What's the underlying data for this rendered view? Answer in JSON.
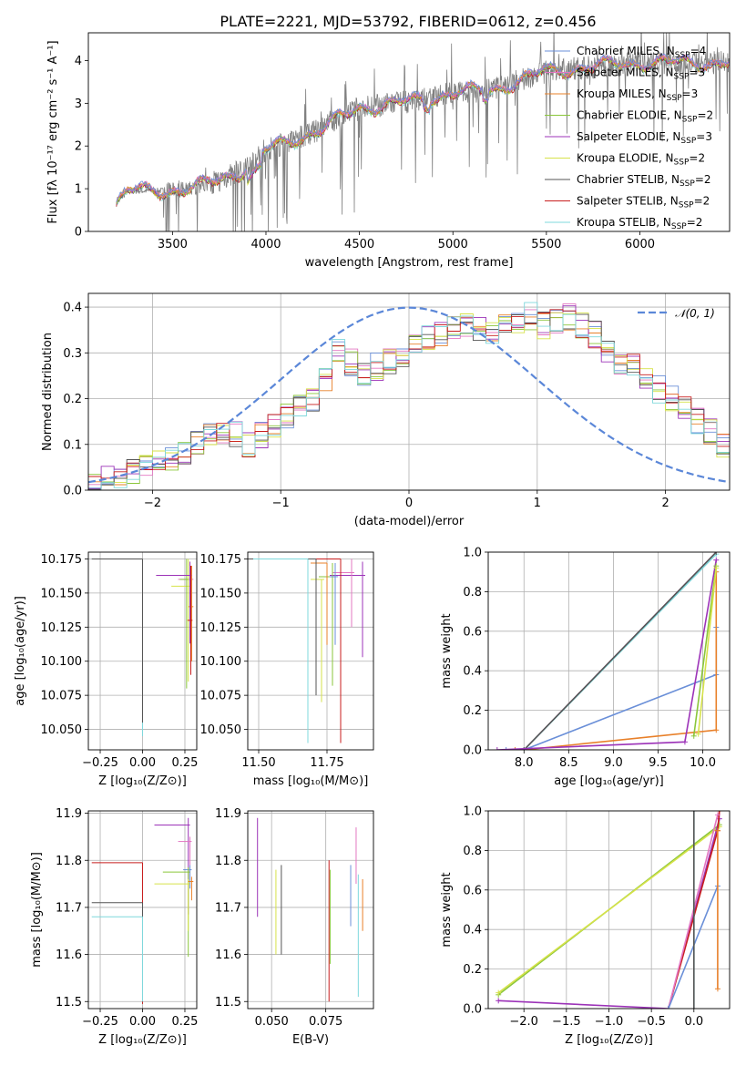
{
  "figure": {
    "title": "PLATE=2221, MJD=53792, FIBERID=0612, z=0.456"
  },
  "colors": {
    "chabrier_miles": "#6a8fd8",
    "salpeter_miles": "#e377c2",
    "kroupa_miles": "#e8802a",
    "chabrier_elodie": "#8ac63a",
    "salpeter_elodie": "#9c33b8",
    "kroupa_elodie": "#d6e24a",
    "chabrier_stelib": "#555555",
    "salpeter_stelib": "#c81e1e",
    "kroupa_stelib": "#7fd8dc",
    "data": "#808080"
  },
  "chart_data": [
    {
      "id": "spectrum",
      "type": "line",
      "xlabel": "wavelength [Angstrom, rest frame]",
      "ylabel": "Flux [fλ 10⁻¹⁷ erg cm⁻² s⁻¹ A⁻¹]",
      "xlim": [
        3050,
        6480
      ],
      "ylim": [
        0,
        4.65
      ],
      "xticks": [
        3500,
        4000,
        4500,
        5000,
        5500,
        6000
      ],
      "yticks": [
        0,
        1,
        2,
        3,
        4
      ],
      "x_range": [
        3200,
        6480
      ],
      "continuum_nodes": [
        [
          3200,
          0.65
        ],
        [
          3260,
          0.95
        ],
        [
          3450,
          0.95
        ],
        [
          3600,
          1.0
        ],
        [
          3750,
          1.2
        ],
        [
          3900,
          1.5
        ],
        [
          4000,
          1.9
        ],
        [
          4300,
          2.4
        ],
        [
          4500,
          2.9
        ],
        [
          4800,
          3.05
        ],
        [
          5000,
          3.25
        ],
        [
          5200,
          3.3
        ],
        [
          5500,
          3.75
        ],
        [
          6000,
          3.95
        ],
        [
          6480,
          3.95
        ]
      ],
      "legend": [
        {
          "label": "Chabrier MILES, N",
          "sub": "SSP",
          "suffix": "=4",
          "color_key": "chabrier_miles"
        },
        {
          "label": "Salpeter MILES, N",
          "sub": "SSP",
          "suffix": "=3",
          "color_key": "salpeter_miles"
        },
        {
          "label": "Kroupa MILES, N",
          "sub": "SSP",
          "suffix": "=3",
          "color_key": "kroupa_miles"
        },
        {
          "label": "Chabrier ELODIE, N",
          "sub": "SSP",
          "suffix": "=2",
          "color_key": "chabrier_elodie"
        },
        {
          "label": "Salpeter ELODIE, N",
          "sub": "SSP",
          "suffix": "=3",
          "color_key": "salpeter_elodie"
        },
        {
          "label": "Kroupa ELODIE, N",
          "sub": "SSP",
          "suffix": "=2",
          "color_key": "kroupa_elodie"
        },
        {
          "label": "Chabrier STELIB, N",
          "sub": "SSP",
          "suffix": "=2",
          "color_key": "chabrier_stelib"
        },
        {
          "label": "Salpeter STELIB, N",
          "sub": "SSP",
          "suffix": "=2",
          "color_key": "salpeter_stelib"
        },
        {
          "label": "Kroupa STELIB, N",
          "sub": "SSP",
          "suffix": "=2",
          "color_key": "kroupa_stelib"
        }
      ],
      "legend_position": "upper-right",
      "grid": false
    },
    {
      "id": "residuals",
      "type": "step",
      "xlabel": "(data-model)/error",
      "ylabel": "Normed distribution",
      "xlim": [
        -2.5,
        2.5
      ],
      "ylim": [
        0,
        0.43
      ],
      "xticks": [
        -2,
        -1,
        0,
        1,
        2
      ],
      "yticks": [
        0.0,
        0.1,
        0.2,
        0.3,
        0.4
      ],
      "bin_width": 0.1,
      "bin_start": -2.5,
      "base_hist": [
        0.02,
        0.03,
        0.03,
        0.04,
        0.05,
        0.06,
        0.07,
        0.08,
        0.1,
        0.12,
        0.13,
        0.12,
        0.1,
        0.12,
        0.14,
        0.16,
        0.18,
        0.2,
        0.24,
        0.3,
        0.28,
        0.25,
        0.27,
        0.28,
        0.3,
        0.32,
        0.33,
        0.34,
        0.35,
        0.36,
        0.35,
        0.34,
        0.36,
        0.37,
        0.38,
        0.36,
        0.37,
        0.38,
        0.36,
        0.34,
        0.3,
        0.28,
        0.27,
        0.24,
        0.22,
        0.2,
        0.18,
        0.15,
        0.13,
        0.1
      ],
      "curve_label": "𝒩(0, 1)",
      "curve_color": "#5b87d8",
      "legend_position": "upper-right",
      "grid": true
    },
    {
      "id": "age_vs_Z",
      "type": "errorbar",
      "xlabel": "Z [log₁₀(Z/Z⊙)]",
      "ylabel": "age  [log₁₀(age/yr)]",
      "xlim": [
        -0.32,
        0.32
      ],
      "ylim": [
        10.035,
        10.18
      ],
      "xticks": [
        -0.25,
        0.0,
        0.25
      ],
      "yticks": [
        10.05,
        10.075,
        10.1,
        10.125,
        10.15,
        10.175
      ],
      "points": [
        {
          "x": 0.28,
          "y": 10.16,
          "xerr": [
            0.07,
            0.02
          ],
          "yerr": [
            0.02,
            0.01
          ],
          "color_key": "salpeter_miles"
        },
        {
          "x": 0.29,
          "y": 10.14,
          "xerr": [
            0.02,
            0.01
          ],
          "yerr": [
            0.04,
            0.03
          ],
          "color_key": "kroupa_miles"
        },
        {
          "x": 0.27,
          "y": 10.155,
          "xerr": [
            0.1,
            0.01
          ],
          "yerr": [
            0.07,
            0.02
          ],
          "color_key": "kroupa_elodie"
        },
        {
          "x": 0.26,
          "y": 10.16,
          "xerr": [
            0.04,
            0.01
          ],
          "yerr": [
            0.08,
            0.015
          ],
          "color_key": "chabrier_elodie"
        },
        {
          "x": 0.28,
          "y": 10.163,
          "xerr": [
            0.2,
            0.01
          ],
          "yerr": [
            0.05,
            0.01
          ],
          "color_key": "salpeter_elodie"
        },
        {
          "x": 0.285,
          "y": 10.13,
          "xerr": [
            0.02,
            0.01
          ],
          "yerr": [
            0.04,
            0.04
          ],
          "color_key": "salpeter_stelib"
        },
        {
          "x": 0.0,
          "y": 10.175,
          "xerr": [
            0.3,
            0.0
          ],
          "yerr": [
            0.13,
            0.0
          ],
          "color_key": "kroupa_stelib"
        },
        {
          "x": 0.0,
          "y": 10.175,
          "xerr": [
            0.3,
            0.0
          ],
          "yerr": [
            0.12,
            0.0
          ],
          "color_key": "chabrier_stelib"
        }
      ],
      "grid": true
    },
    {
      "id": "age_vs_mass",
      "type": "errorbar",
      "xlabel": "mass [log₁₀(M/M⊙)]",
      "ylabel": "",
      "xlim": [
        11.46,
        11.92
      ],
      "ylim": [
        10.035,
        10.18
      ],
      "xticks": [
        11.5,
        11.75
      ],
      "yticks": [
        10.05,
        10.075,
        10.1,
        10.125,
        10.15,
        10.175
      ],
      "points": [
        {
          "x": 11.88,
          "y": 10.163,
          "xerr": [
            0.12,
            0.01
          ],
          "yerr": [
            0.06,
            0.01
          ],
          "color_key": "salpeter_elodie"
        },
        {
          "x": 11.84,
          "y": 10.165,
          "xerr": [
            0.07,
            0.01
          ],
          "yerr": [
            0.04,
            0.01
          ],
          "color_key": "salpeter_miles"
        },
        {
          "x": 11.8,
          "y": 10.175,
          "xerr": [
            0.3,
            0.0
          ],
          "yerr": [
            0.135,
            0.0
          ],
          "color_key": "salpeter_stelib"
        },
        {
          "x": 11.77,
          "y": 10.162,
          "xerr": [
            0.05,
            0.01
          ],
          "yerr": [
            0.08,
            0.01
          ],
          "color_key": "chabrier_elodie"
        },
        {
          "x": 11.75,
          "y": 10.172,
          "xerr": [
            0.06,
            0.0
          ],
          "yerr": [
            0.06,
            0.0
          ],
          "color_key": "kroupa_miles"
        },
        {
          "x": 11.73,
          "y": 10.16,
          "xerr": [
            0.04,
            0.01
          ],
          "yerr": [
            0.09,
            0.0
          ],
          "color_key": "kroupa_elodie"
        },
        {
          "x": 11.71,
          "y": 10.175,
          "xerr": [
            0.25,
            0.0
          ],
          "yerr": [
            0.1,
            0.0
          ],
          "color_key": "chabrier_stelib"
        },
        {
          "x": 11.68,
          "y": 10.175,
          "xerr": [
            0.2,
            0.0
          ],
          "yerr": [
            0.135,
            0.0
          ],
          "color_key": "kroupa_stelib"
        },
        {
          "x": 11.78,
          "y": 10.162,
          "xerr": [
            0.02,
            0.01
          ],
          "yerr": [
            0.05,
            0.01
          ],
          "color_key": "chabrier_miles"
        }
      ],
      "grid": true
    },
    {
      "id": "massweight_vs_age",
      "type": "line",
      "xlabel": "age  [log₁₀(age/yr)]",
      "ylabel": "mass weight",
      "xlim": [
        7.6,
        10.3
      ],
      "ylim": [
        0,
        1.0
      ],
      "xticks": [
        8.0,
        8.5,
        9.0,
        9.5,
        10.0
      ],
      "yticks": [
        0.0,
        0.2,
        0.4,
        0.6,
        0.8,
        1.0
      ],
      "series": [
        {
          "color_key": "chabrier_miles",
          "points": [
            [
              7.8,
              0.0
            ],
            [
              8.0,
              0.0
            ],
            [
              10.15,
              0.38
            ],
            [
              10.15,
              0.62
            ]
          ]
        },
        {
          "color_key": "kroupa_miles",
          "points": [
            [
              7.9,
              0.0
            ],
            [
              8.0,
              0.0
            ],
            [
              10.15,
              0.1
            ],
            [
              10.15,
              0.9
            ]
          ]
        },
        {
          "color_key": "salpeter_miles",
          "points": [
            [
              8.0,
              0.0
            ],
            [
              10.15,
              1.0
            ]
          ]
        },
        {
          "color_key": "kroupa_stelib",
          "points": [
            [
              8.0,
              0.0
            ],
            [
              10.15,
              0.99
            ]
          ]
        },
        {
          "color_key": "chabrier_stelib",
          "points": [
            [
              8.0,
              0.0
            ],
            [
              10.15,
              1.0
            ]
          ]
        },
        {
          "color_key": "salpeter_elodie",
          "points": [
            [
              7.7,
              0.0
            ],
            [
              9.8,
              0.04
            ],
            [
              10.15,
              0.96
            ]
          ]
        },
        {
          "color_key": "chabrier_elodie",
          "points": [
            [
              9.9,
              0.07
            ],
            [
              10.15,
              0.93
            ]
          ]
        },
        {
          "color_key": "kroupa_elodie",
          "points": [
            [
              9.95,
              0.08
            ],
            [
              10.15,
              0.92
            ]
          ]
        }
      ],
      "grid": true
    },
    {
      "id": "mass_vs_Z",
      "type": "errorbar",
      "xlabel": "Z [log₁₀(Z/Z⊙)]",
      "ylabel": "mass [log₁₀(M/M⊙)]",
      "xlim": [
        -0.32,
        0.32
      ],
      "ylim": [
        11.485,
        11.905
      ],
      "xticks": [
        -0.25,
        0.0,
        0.25
      ],
      "yticks": [
        11.5,
        11.6,
        11.7,
        11.8,
        11.9
      ],
      "points": [
        {
          "x": 0.27,
          "y": 11.875,
          "xerr": [
            0.2,
            0.01
          ],
          "yerr": [
            0.19,
            0.015
          ],
          "color_key": "salpeter_elodie"
        },
        {
          "x": 0.28,
          "y": 11.84,
          "xerr": [
            0.07,
            0.01
          ],
          "yerr": [
            0.05,
            0.01
          ],
          "color_key": "salpeter_miles"
        },
        {
          "x": 0.0,
          "y": 11.795,
          "xerr": [
            0.3,
            0.0
          ],
          "yerr": [
            0.3,
            0.0
          ],
          "color_key": "salpeter_stelib"
        },
        {
          "x": 0.28,
          "y": 11.78,
          "xerr": [
            0.04,
            0.01
          ],
          "yerr": [
            0.04,
            0.01
          ],
          "color_key": "chabrier_miles"
        },
        {
          "x": 0.27,
          "y": 11.775,
          "xerr": [
            0.15,
            0.01
          ],
          "yerr": [
            0.18,
            0.01
          ],
          "color_key": "chabrier_elodie"
        },
        {
          "x": 0.27,
          "y": 11.75,
          "xerr": [
            0.2,
            0.01
          ],
          "yerr": [
            0.1,
            0.01
          ],
          "color_key": "kroupa_elodie"
        },
        {
          "x": 0.29,
          "y": 11.755,
          "xerr": [
            0.02,
            0.01
          ],
          "yerr": [
            0.04,
            0.01
          ],
          "color_key": "kroupa_miles"
        },
        {
          "x": 0.0,
          "y": 11.71,
          "xerr": [
            0.3,
            0.0
          ],
          "yerr": [
            0.21,
            0.0
          ],
          "color_key": "chabrier_stelib"
        },
        {
          "x": 0.0,
          "y": 11.68,
          "xerr": [
            0.3,
            0.0
          ],
          "yerr": [
            0.18,
            0.0
          ],
          "color_key": "kroupa_stelib"
        }
      ],
      "grid": true
    },
    {
      "id": "mass_vs_ebv",
      "type": "errorbar",
      "xlabel": "E(B-V)",
      "ylabel": "",
      "xlim": [
        0.039,
        0.097
      ],
      "ylim": [
        11.485,
        11.905
      ],
      "xticks": [
        0.05,
        0.075
      ],
      "yticks": [
        11.5,
        11.6,
        11.7,
        11.8,
        11.9
      ],
      "vlines": [
        {
          "x": 0.0435,
          "y0": 11.68,
          "y1": 11.89,
          "color_key": "salpeter_elodie"
        },
        {
          "x": 0.052,
          "y0": 11.6,
          "y1": 11.78,
          "color_key": "kroupa_elodie"
        },
        {
          "x": 0.0545,
          "y0": 11.6,
          "y1": 11.79,
          "color_key": "chabrier_stelib"
        },
        {
          "x": 0.0765,
          "y0": 11.5,
          "y1": 11.8,
          "color_key": "salpeter_stelib"
        },
        {
          "x": 0.077,
          "y0": 11.58,
          "y1": 11.78,
          "color_key": "chabrier_elodie"
        },
        {
          "x": 0.0865,
          "y0": 11.66,
          "y1": 11.79,
          "color_key": "chabrier_miles"
        },
        {
          "x": 0.089,
          "y0": 11.75,
          "y1": 11.87,
          "color_key": "salpeter_miles"
        },
        {
          "x": 0.09,
          "y0": 11.51,
          "y1": 11.77,
          "color_key": "kroupa_stelib"
        },
        {
          "x": 0.092,
          "y0": 11.65,
          "y1": 11.76,
          "color_key": "kroupa_miles"
        }
      ],
      "grid": true
    },
    {
      "id": "massweight_vs_Z",
      "type": "line",
      "xlabel": "Z [log₁₀(Z/Z⊙)]",
      "ylabel": "mass weight",
      "xlim": [
        -2.42,
        0.42
      ],
      "ylim": [
        0,
        1.0
      ],
      "xticks": [
        -2.0,
        -1.5,
        -1.0,
        -0.5,
        0.0
      ],
      "yticks": [
        0.0,
        0.2,
        0.4,
        0.6,
        0.8,
        1.0
      ],
      "series": [
        {
          "color_key": "chabrier_elodie",
          "points": [
            [
              -2.3,
              0.07
            ],
            [
              0.3,
              0.93
            ]
          ]
        },
        {
          "color_key": "kroupa_elodie",
          "points": [
            [
              -2.3,
              0.08
            ],
            [
              0.3,
              0.92
            ]
          ]
        },
        {
          "color_key": "salpeter_elodie",
          "points": [
            [
              -2.3,
              0.04
            ],
            [
              -0.3,
              0.0
            ],
            [
              0.3,
              0.96
            ]
          ]
        },
        {
          "color_key": "salpeter_stelib",
          "points": [
            [
              -0.3,
              0.0
            ],
            [
              0.28,
              0.9
            ],
            [
              0.3,
              1.0
            ]
          ]
        },
        {
          "color_key": "salpeter_miles",
          "points": [
            [
              -0.3,
              0.0
            ],
            [
              0.28,
              0.98
            ]
          ]
        },
        {
          "color_key": "chabrier_miles",
          "points": [
            [
              -0.3,
              0.0
            ],
            [
              0.28,
              0.62
            ]
          ]
        },
        {
          "color_key": "kroupa_miles",
          "points": [
            [
              0.28,
              0.1
            ],
            [
              0.28,
              0.9
            ]
          ]
        },
        {
          "color_key": "kroupa_stelib",
          "points": [
            [
              0.0,
              0.0
            ],
            [
              0.0,
              1.0
            ]
          ]
        },
        {
          "color_key": "chabrier_stelib",
          "points": [
            [
              0.0,
              0.0
            ],
            [
              0.0,
              1.0
            ]
          ]
        }
      ],
      "grid": true
    }
  ]
}
